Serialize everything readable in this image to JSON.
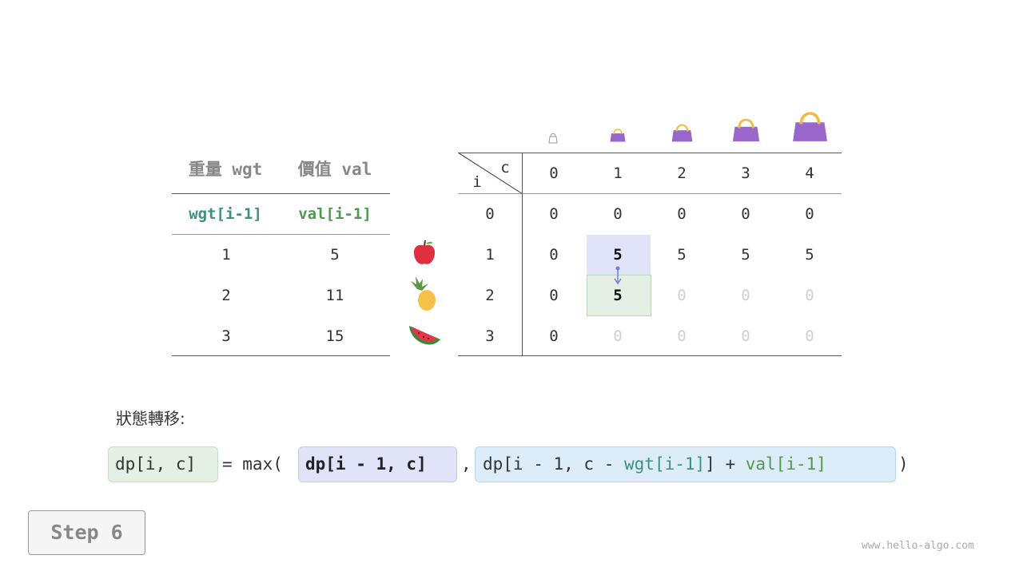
{
  "left_table": {
    "headers": [
      "重量 wgt",
      "價值 val"
    ],
    "subheaders": [
      "wgt[i-1]",
      "val[i-1]"
    ],
    "rows": [
      [
        "1",
        "5"
      ],
      [
        "2",
        "11"
      ],
      [
        "3",
        "15"
      ]
    ],
    "items": [
      "apple-icon",
      "pineapple-icon",
      "watermelon-icon"
    ]
  },
  "dp_table": {
    "corner_row_label": "i",
    "corner_col_label": "c",
    "col_headers": [
      "0",
      "1",
      "2",
      "3",
      "4"
    ],
    "row_headers": [
      "0",
      "1",
      "2",
      "3"
    ],
    "cells": [
      [
        "0",
        "0",
        "0",
        "0",
        "0"
      ],
      [
        "0",
        "5",
        "5",
        "5",
        "5"
      ],
      [
        "0",
        "5",
        "0",
        "0",
        "0"
      ],
      [
        "0",
        "0",
        "0",
        "0",
        "0"
      ]
    ],
    "cell_state": [
      [
        "n",
        "n",
        "n",
        "n",
        "n"
      ],
      [
        "n",
        "src",
        "n",
        "n",
        "n"
      ],
      [
        "n",
        "cur",
        "f",
        "f",
        "f"
      ],
      [
        "n",
        "f",
        "f",
        "f",
        "f"
      ]
    ],
    "capacity_icons": [
      "bag-icon-empty",
      "bag-icon",
      "bag-icon",
      "bag-icon",
      "bag-icon"
    ]
  },
  "formula": {
    "label": "狀態轉移:",
    "lhs": "dp[i, c]",
    "eq": "= max(",
    "arg1": "dp[i - 1, c]",
    "comma": ",",
    "arg2_a": "dp[i - 1, c - ",
    "arg2_wgt": "wgt[i-1]",
    "arg2_b": "] + ",
    "arg2_val": "val[i-1]",
    "close": ")"
  },
  "step_label": "Step 6",
  "watermark": "www.hello-algo.com",
  "colors": {
    "bag": "#9966cc",
    "handle": "#f5b942",
    "src_fill": "#e1e4f8",
    "cur_fill": "#e3f0e3",
    "teal": "#3a9283",
    "green": "#4f9a4f"
  }
}
